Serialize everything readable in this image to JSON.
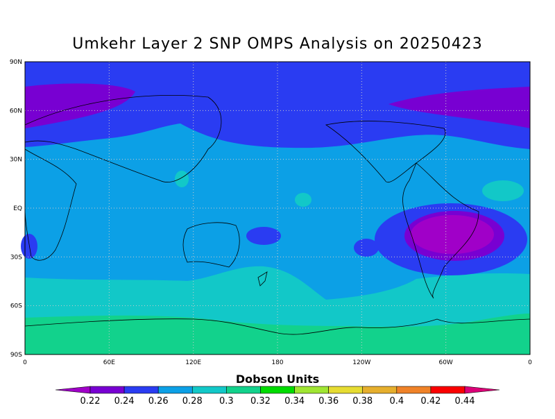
{
  "map": {
    "title": "Umkehr Layer 2 SNP OMPS Analysis on 20250423",
    "lat_labels": [
      "90N",
      "60N",
      "30N",
      "EQ",
      "30S",
      "60S",
      "90S"
    ],
    "lon_labels": [
      "0",
      "60E",
      "120E",
      "180",
      "120W",
      "60W",
      "0"
    ]
  },
  "colorbar": {
    "label": "Dobson Units",
    "ticks": [
      0.22,
      0.24,
      0.26,
      0.28,
      0.3,
      0.32,
      0.34,
      0.36,
      0.38,
      0.4,
      0.42,
      0.44
    ],
    "colors": [
      "#a000c8",
      "#7800d2",
      "#2a3cf2",
      "#0ca0e6",
      "#12c8c8",
      "#12d28c",
      "#00dc00",
      "#a0e632",
      "#e6dc32",
      "#e6af2d",
      "#f08228",
      "#fa0000",
      "#dc0078"
    ]
  }
}
